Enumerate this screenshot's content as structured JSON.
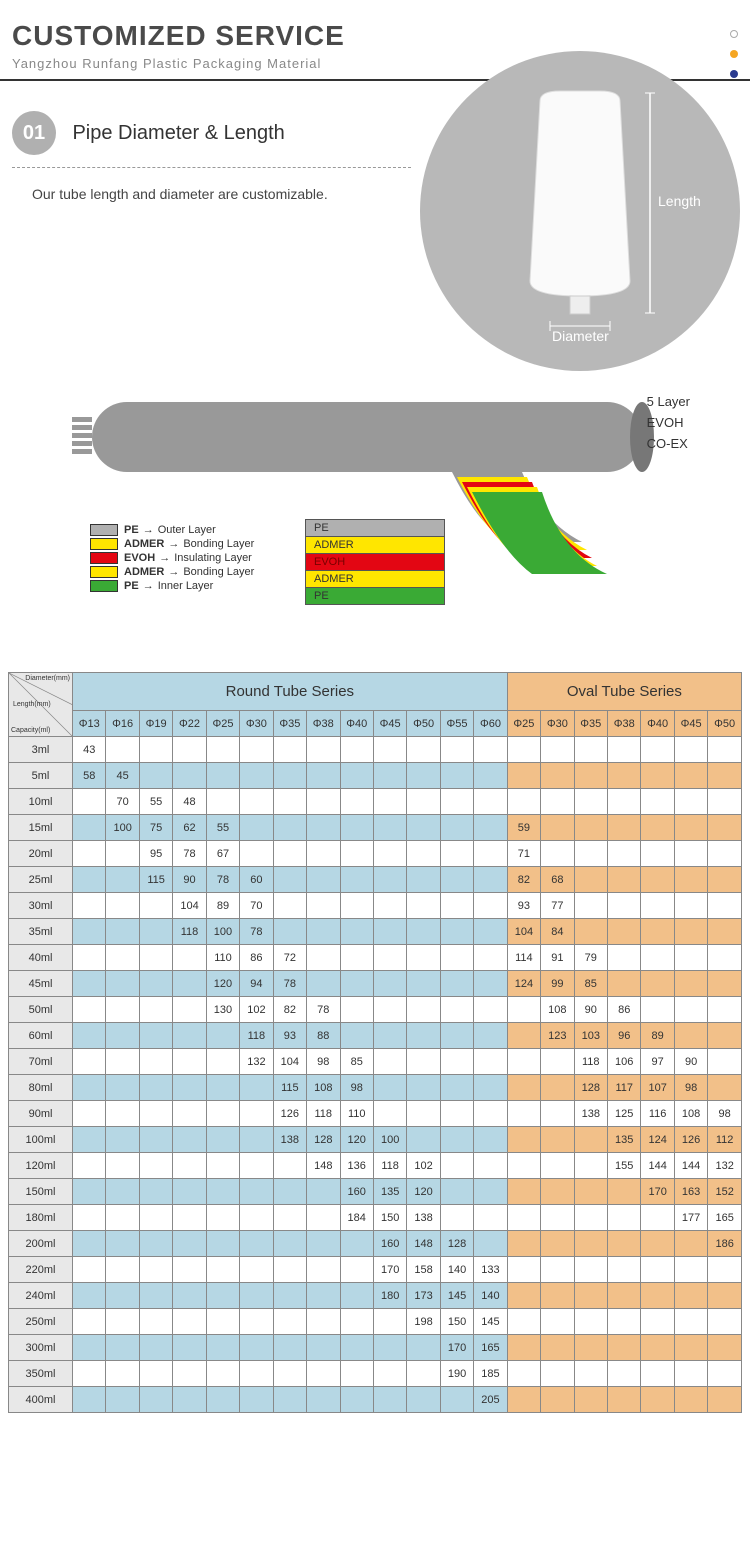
{
  "header": {
    "title": "CUSTOMIZED SERVICE",
    "subtitle": "Yangzhou Runfang Plastic Packaging Material",
    "dots": [
      "#cccccc",
      "#f5a623",
      "#2a3b8f"
    ]
  },
  "section01": {
    "badge": "01",
    "title": "Pipe Diameter & Length",
    "desc": "Our tube length and diameter are customizable.",
    "label_length": "Length",
    "label_diameter": "Diameter"
  },
  "layers": {
    "right_labels": [
      "5 Layer",
      "EVOH",
      "CO-EX"
    ],
    "legend": [
      {
        "color": "#b0b0b0",
        "mat": "PE",
        "role": "Outer Layer"
      },
      {
        "color": "#ffe600",
        "mat": "ADMER",
        "role": "Bonding Layer"
      },
      {
        "color": "#e30613",
        "mat": "EVOH",
        "role": "Insulating Layer"
      },
      {
        "color": "#ffe600",
        "mat": "ADMER",
        "role": "Bonding Layer"
      },
      {
        "color": "#3aaa35",
        "mat": "PE",
        "role": "Inner Layer"
      }
    ],
    "box": [
      {
        "bg": "#b0b0b0",
        "txt": "PE",
        "fg": "#333"
      },
      {
        "bg": "#ffe600",
        "txt": "ADMER",
        "fg": "#333"
      },
      {
        "bg": "#e30613",
        "txt": "EVOH",
        "fg": "#7a0000"
      },
      {
        "bg": "#ffe600",
        "txt": "ADMER",
        "fg": "#333"
      },
      {
        "bg": "#3aaa35",
        "txt": "PE",
        "fg": "#333"
      }
    ]
  },
  "table": {
    "corner_labels": [
      "Diameter(mm)",
      "Length(mm)",
      "Capacity(ml)"
    ],
    "round_title": "Round Tube Series",
    "oval_title": "Oval Tube Series",
    "round_cols": [
      "Φ13",
      "Φ16",
      "Φ19",
      "Φ22",
      "Φ25",
      "Φ30",
      "Φ35",
      "Φ38",
      "Φ40",
      "Φ45",
      "Φ50",
      "Φ55",
      "Φ60"
    ],
    "oval_cols": [
      "Φ25",
      "Φ30",
      "Φ35",
      "Φ38",
      "Φ40",
      "Φ45",
      "Φ50"
    ],
    "rows": [
      {
        "cap": "3ml",
        "stripe": true,
        "r": [
          "43",
          "",
          "",
          "",
          "",
          "",
          "",
          "",
          "",
          "",
          "",
          "",
          ""
        ],
        "o": [
          "",
          "",
          "",
          "",
          "",
          "",
          ""
        ]
      },
      {
        "cap": "5ml",
        "stripe": false,
        "r": [
          "58",
          "45",
          "",
          "",
          "",
          "",
          "",
          "",
          "",
          "",
          "",
          "",
          ""
        ],
        "o": [
          "",
          "",
          "",
          "",
          "",
          "",
          ""
        ]
      },
      {
        "cap": "10ml",
        "stripe": true,
        "r": [
          "",
          "70",
          "55",
          "48",
          "",
          "",
          "",
          "",
          "",
          "",
          "",
          "",
          ""
        ],
        "o": [
          "",
          "",
          "",
          "",
          "",
          "",
          ""
        ]
      },
      {
        "cap": "15ml",
        "stripe": false,
        "r": [
          "",
          "100",
          "75",
          "62",
          "55",
          "",
          "",
          "",
          "",
          "",
          "",
          "",
          ""
        ],
        "o": [
          "59",
          "",
          "",
          "",
          "",
          "",
          ""
        ]
      },
      {
        "cap": "20ml",
        "stripe": true,
        "r": [
          "",
          "",
          "95",
          "78",
          "67",
          "",
          "",
          "",
          "",
          "",
          "",
          "",
          ""
        ],
        "o": [
          "71",
          "",
          "",
          "",
          "",
          "",
          ""
        ]
      },
      {
        "cap": "25ml",
        "stripe": false,
        "r": [
          "",
          "",
          "115",
          "90",
          "78",
          "60",
          "",
          "",
          "",
          "",
          "",
          "",
          ""
        ],
        "o": [
          "82",
          "68",
          "",
          "",
          "",
          "",
          ""
        ]
      },
      {
        "cap": "30ml",
        "stripe": true,
        "r": [
          "",
          "",
          "",
          "104",
          "89",
          "70",
          "",
          "",
          "",
          "",
          "",
          "",
          ""
        ],
        "o": [
          "93",
          "77",
          "",
          "",
          "",
          "",
          ""
        ]
      },
      {
        "cap": "35ml",
        "stripe": false,
        "r": [
          "",
          "",
          "",
          "118",
          "100",
          "78",
          "",
          "",
          "",
          "",
          "",
          "",
          ""
        ],
        "o": [
          "104",
          "84",
          "",
          "",
          "",
          "",
          ""
        ]
      },
      {
        "cap": "40ml",
        "stripe": true,
        "r": [
          "",
          "",
          "",
          "",
          "110",
          "86",
          "72",
          "",
          "",
          "",
          "",
          "",
          ""
        ],
        "o": [
          "114",
          "91",
          "79",
          "",
          "",
          "",
          ""
        ]
      },
      {
        "cap": "45ml",
        "stripe": false,
        "r": [
          "",
          "",
          "",
          "",
          "120",
          "94",
          "78",
          "",
          "",
          "",
          "",
          "",
          ""
        ],
        "o": [
          "124",
          "99",
          "85",
          "",
          "",
          "",
          ""
        ]
      },
      {
        "cap": "50ml",
        "stripe": true,
        "r": [
          "",
          "",
          "",
          "",
          "130",
          "102",
          "82",
          "78",
          "",
          "",
          "",
          "",
          ""
        ],
        "o": [
          "",
          "108",
          "90",
          "86",
          "",
          "",
          ""
        ]
      },
      {
        "cap": "60ml",
        "stripe": false,
        "r": [
          "",
          "",
          "",
          "",
          "",
          "118",
          "93",
          "88",
          "",
          "",
          "",
          "",
          ""
        ],
        "o": [
          "",
          "123",
          "103",
          "96",
          "89",
          "",
          ""
        ]
      },
      {
        "cap": "70ml",
        "stripe": true,
        "r": [
          "",
          "",
          "",
          "",
          "",
          "132",
          "104",
          "98",
          "85",
          "",
          "",
          "",
          ""
        ],
        "o": [
          "",
          "",
          "118",
          "106",
          "97",
          "90",
          ""
        ]
      },
      {
        "cap": "80ml",
        "stripe": false,
        "r": [
          "",
          "",
          "",
          "",
          "",
          "",
          "115",
          "108",
          "98",
          "",
          "",
          "",
          ""
        ],
        "o": [
          "",
          "",
          "128",
          "117",
          "107",
          "98",
          ""
        ]
      },
      {
        "cap": "90ml",
        "stripe": true,
        "r": [
          "",
          "",
          "",
          "",
          "",
          "",
          "126",
          "118",
          "110",
          "",
          "",
          "",
          ""
        ],
        "o": [
          "",
          "",
          "138",
          "125",
          "116",
          "108",
          "98"
        ]
      },
      {
        "cap": "100ml",
        "stripe": false,
        "r": [
          "",
          "",
          "",
          "",
          "",
          "",
          "138",
          "128",
          "120",
          "100",
          "",
          "",
          ""
        ],
        "o": [
          "",
          "",
          "",
          "135",
          "124",
          "126",
          "112"
        ]
      },
      {
        "cap": "120ml",
        "stripe": true,
        "r": [
          "",
          "",
          "",
          "",
          "",
          "",
          "",
          "148",
          "136",
          "118",
          "102",
          "",
          ""
        ],
        "o": [
          "",
          "",
          "",
          "155",
          "144",
          "144",
          "132"
        ]
      },
      {
        "cap": "150ml",
        "stripe": false,
        "r": [
          "",
          "",
          "",
          "",
          "",
          "",
          "",
          "",
          "160",
          "135",
          "120",
          "",
          ""
        ],
        "o": [
          "",
          "",
          "",
          "",
          "170",
          "163",
          "152"
        ]
      },
      {
        "cap": "180ml",
        "stripe": true,
        "r": [
          "",
          "",
          "",
          "",
          "",
          "",
          "",
          "",
          "184",
          "150",
          "138",
          "",
          ""
        ],
        "o": [
          "",
          "",
          "",
          "",
          "",
          "177",
          "165"
        ]
      },
      {
        "cap": "200ml",
        "stripe": false,
        "r": [
          "",
          "",
          "",
          "",
          "",
          "",
          "",
          "",
          "",
          "160",
          "148",
          "128",
          ""
        ],
        "o": [
          "",
          "",
          "",
          "",
          "",
          "",
          "186"
        ]
      },
      {
        "cap": "220ml",
        "stripe": true,
        "r": [
          "",
          "",
          "",
          "",
          "",
          "",
          "",
          "",
          "",
          "170",
          "158",
          "140",
          "133"
        ],
        "o": [
          "",
          "",
          "",
          "",
          "",
          "",
          ""
        ]
      },
      {
        "cap": "240ml",
        "stripe": false,
        "r": [
          "",
          "",
          "",
          "",
          "",
          "",
          "",
          "",
          "",
          "180",
          "173",
          "145",
          "140"
        ],
        "o": [
          "",
          "",
          "",
          "",
          "",
          "",
          ""
        ]
      },
      {
        "cap": "250ml",
        "stripe": true,
        "r": [
          "",
          "",
          "",
          "",
          "",
          "",
          "",
          "",
          "",
          "",
          "198",
          "150",
          "145"
        ],
        "o": [
          "",
          "",
          "",
          "",
          "",
          "",
          ""
        ]
      },
      {
        "cap": "300ml",
        "stripe": false,
        "r": [
          "",
          "",
          "",
          "",
          "",
          "",
          "",
          "",
          "",
          "",
          "",
          "170",
          "165"
        ],
        "o": [
          "",
          "",
          "",
          "",
          "",
          "",
          ""
        ]
      },
      {
        "cap": "350ml",
        "stripe": true,
        "r": [
          "",
          "",
          "",
          "",
          "",
          "",
          "",
          "",
          "",
          "",
          "",
          "190",
          "185"
        ],
        "o": [
          "",
          "",
          "",
          "",
          "",
          "",
          ""
        ]
      },
      {
        "cap": "400ml",
        "stripe": false,
        "r": [
          "",
          "",
          "",
          "",
          "",
          "",
          "",
          "",
          "",
          "",
          "",
          "",
          "205"
        ],
        "o": [
          "",
          "",
          "",
          "",
          "",
          "",
          ""
        ]
      }
    ],
    "colors": {
      "round_bg": "#b6d7e4",
      "oval_bg": "#f2c089",
      "row_bg": "#e8e8e8"
    }
  }
}
